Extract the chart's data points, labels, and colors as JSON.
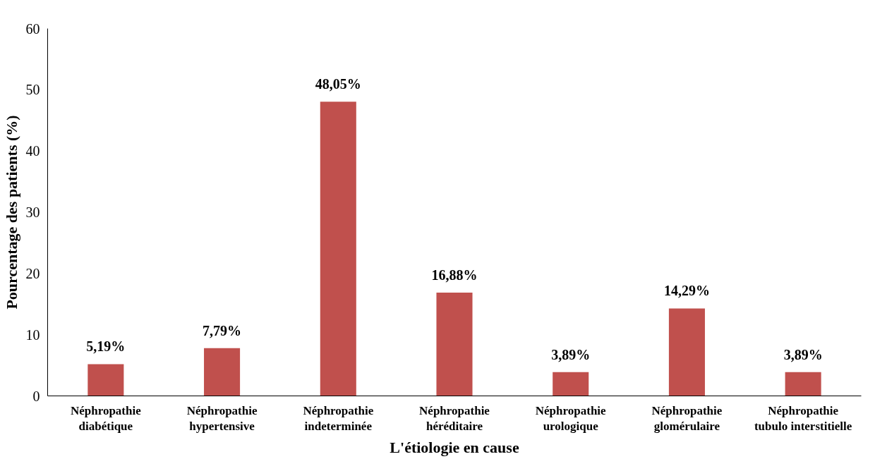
{
  "chart_data": {
    "type": "bar",
    "xlabel": "L'étiologie en cause",
    "ylabel": "Pourcentage des patients (%)",
    "categories": [
      "Néphropathie diabétique",
      "Néphropathie hypertensive",
      "Néphropathie indeterminée",
      "Néphropathie héréditaire",
      "Néphropathie urologique",
      "Néphropathie glomérulaire",
      "Néphropathie tubulo interstitielle"
    ],
    "values": [
      5.19,
      7.79,
      48.05,
      16.88,
      3.89,
      14.29,
      3.89
    ],
    "value_labels": [
      "5,19%",
      "7,79%",
      "48,05%",
      "16,88%",
      "3,89%",
      "14,29%",
      "3,89%"
    ],
    "color": "#c0504d",
    "ylim": [
      0,
      60
    ],
    "yticks": [
      0,
      10,
      20,
      30,
      40,
      50,
      60
    ],
    "grid": false
  }
}
